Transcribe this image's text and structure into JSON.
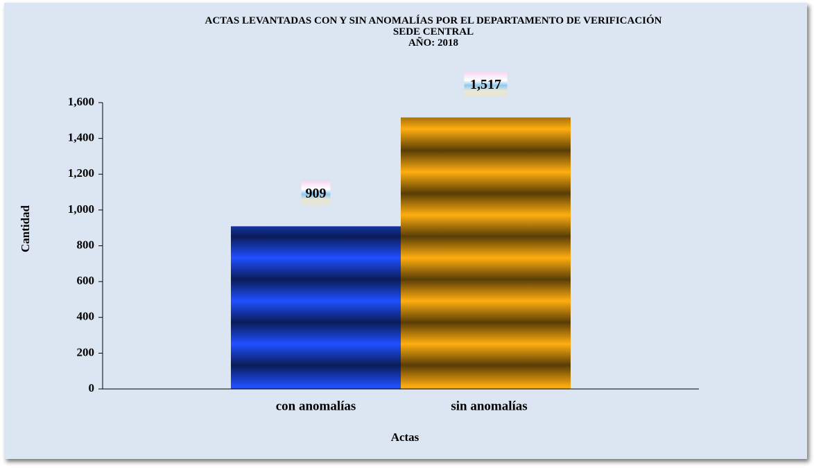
{
  "chart_data": {
    "type": "bar",
    "title": "ACTAS LEVANTADAS CON Y SIN ANOMALÍAS POR EL DEPARTAMENTO DE VERIFICACIÓN",
    "subtitle": [
      "SEDE CENTRAL",
      "AÑO: 2018"
    ],
    "x_label": "Actas",
    "y_label": "Cantidad",
    "categories": [
      "con anomalías",
      "sin anomalías"
    ],
    "values": [
      909,
      1517
    ],
    "value_labels": [
      "909",
      "1,517"
    ],
    "colors": [
      "#1e50ff",
      "#ffae10"
    ],
    "ylim": [
      0,
      1600
    ],
    "yticks": [
      0,
      200,
      400,
      600,
      800,
      {
        "value": 1000,
        "label": "1,000"
      },
      {
        "value": 1200,
        "label": "1,200"
      },
      {
        "value": 1400,
        "label": "1,400"
      },
      {
        "value": 1600,
        "label": "1,600"
      }
    ],
    "grid": false
  }
}
